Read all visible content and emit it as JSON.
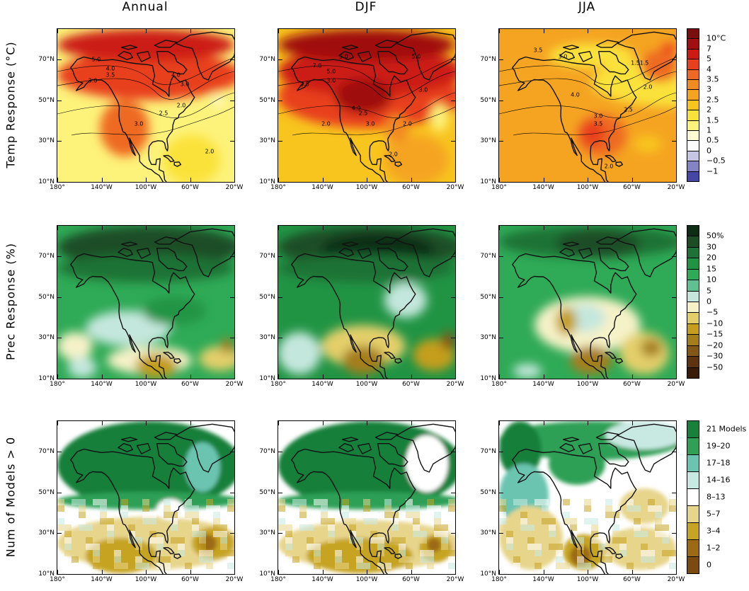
{
  "columns": [
    "Annual",
    "DJF",
    "JJA"
  ],
  "rows": [
    {
      "id": "temp",
      "title": "Temp Response (°C)"
    },
    {
      "id": "prec",
      "title": "Prec Response (%)"
    },
    {
      "id": "models",
      "title": "Num of Models > 0"
    }
  ],
  "axes": {
    "lat_labels": [
      "70°N",
      "50°N",
      "30°N",
      "10°N"
    ],
    "lat_values": [
      70,
      50,
      30,
      10
    ],
    "lon_labels": [
      "180°",
      "140°W",
      "100°W",
      "60°W",
      "20°W"
    ],
    "lon_values": [
      -180,
      -140,
      -100,
      -60,
      -20
    ],
    "lat_range": [
      10,
      85
    ],
    "lon_range": [
      -180,
      -20
    ]
  },
  "legends": {
    "temp": {
      "labels": [
        "10°C",
        "7",
        "5",
        "4",
        "3.5",
        "3",
        "2.5",
        "2",
        "1.5",
        "1",
        "0.5",
        "0",
        "−0.5",
        "−1"
      ],
      "colors": [
        "#7a0d0d",
        "#a01010",
        "#cc1a14",
        "#e8401e",
        "#ee6a24",
        "#f28a22",
        "#f5a422",
        "#f8c41e",
        "#fbe23a",
        "#fdf27a",
        "#fffbd2",
        "#fbfbfb",
        "#c6c6e4",
        "#8484c4",
        "#4646a4"
      ]
    },
    "prec": {
      "labels": [
        "50%",
        "30",
        "20",
        "15",
        "10",
        "5",
        "0",
        "−5",
        "−10",
        "−15",
        "−20",
        "−30",
        "−50"
      ],
      "colors": [
        "#0f2d14",
        "#1d4d25",
        "#1f7236",
        "#219444",
        "#2faa56",
        "#61c091",
        "#c4e7dd",
        "#f6f2c8",
        "#e3cf6a",
        "#c49e1c",
        "#a57e1c",
        "#855717",
        "#5e3410",
        "#3a1a08"
      ]
    },
    "models": {
      "labels": [
        "21 Models",
        "19–20",
        "17–18",
        "14–16",
        "8–13",
        "5–7",
        "3–4",
        "1–2",
        "0"
      ],
      "colors": [
        "#17803a",
        "#2fa056",
        "#6ac4b0",
        "#c8e9e2",
        "#ffffff",
        "#e7d58c",
        "#c6a424",
        "#9c6a14",
        "#7a4a10"
      ]
    }
  },
  "contour_labels": {
    "temp_annual": [
      "5.0",
      "4.0",
      "3.5",
      "3.0",
      "4.0",
      "3.0",
      "2.5",
      "2.0",
      "3.0",
      "2.0"
    ],
    "temp_djf": [
      "5.0",
      "7.0",
      "5.0",
      "3.5",
      "3.0",
      "2.5",
      "2.0",
      "4.0",
      "3.0",
      "2.0",
      "2.0",
      "3.0",
      "5.0"
    ],
    "temp_jja": [
      "3.5",
      "3.0",
      "1.5",
      "4.0",
      "2.0",
      "3.0",
      "3.5",
      "2.5",
      "2.0",
      "1.5"
    ]
  }
}
